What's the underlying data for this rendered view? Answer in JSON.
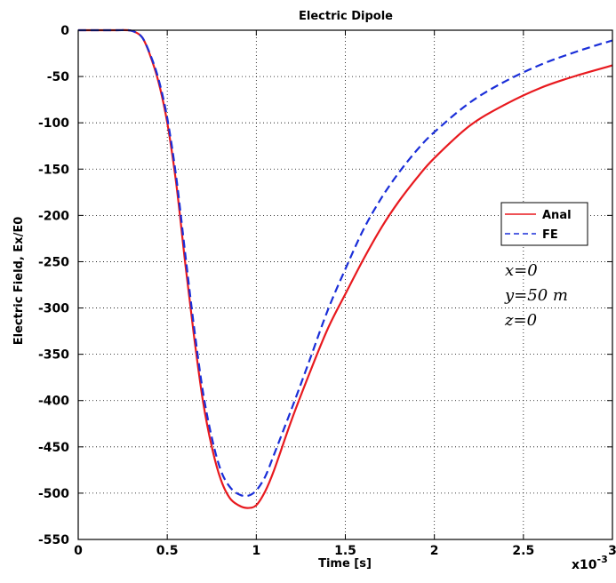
{
  "chart_data": {
    "type": "line",
    "title": "Electric Dipole",
    "xlabel": "Time [s]",
    "ylabel": "Electric Field, Ex/E0",
    "x_multiplier": "x10",
    "x_multiplier_exp": "-3",
    "xlim": [
      0,
      3
    ],
    "ylim": [
      -550,
      0
    ],
    "xticks": [
      0,
      0.5,
      1,
      1.5,
      2,
      2.5,
      3
    ],
    "xtick_labels": [
      "0",
      "0.5",
      "1",
      "1.5",
      "2",
      "2.5",
      "3"
    ],
    "yticks": [
      0,
      -50,
      -100,
      -150,
      -200,
      -250,
      -300,
      -350,
      -400,
      -450,
      -500,
      -550
    ],
    "ytick_labels": [
      "0",
      "-50",
      "-100",
      "-150",
      "-200",
      "-250",
      "-300",
      "-350",
      "-400",
      "-450",
      "-500",
      "-550"
    ],
    "grid": true,
    "legend_position": "right",
    "annotations": [
      "x=0",
      "y=50 m",
      "z=0"
    ],
    "series": [
      {
        "name": "Anal",
        "color": "#e8191e",
        "style": "solid",
        "x": [
          0,
          0.2,
          0.28,
          0.32,
          0.36,
          0.4,
          0.45,
          0.5,
          0.55,
          0.6,
          0.65,
          0.7,
          0.75,
          0.8,
          0.85,
          0.9,
          0.95,
          1.0,
          1.05,
          1.1,
          1.2,
          1.3,
          1.4,
          1.5,
          1.6,
          1.7,
          1.8,
          1.9,
          2.0,
          2.2,
          2.4,
          2.6,
          2.8,
          3.0
        ],
        "y": [
          0,
          0,
          0,
          -2,
          -8,
          -25,
          -55,
          -100,
          -165,
          -250,
          -330,
          -400,
          -450,
          -485,
          -505,
          -513,
          -516,
          -513,
          -498,
          -475,
          -420,
          -370,
          -323,
          -285,
          -248,
          -214,
          -185,
          -160,
          -138,
          -103,
          -80,
          -62,
          -49,
          -38
        ]
      },
      {
        "name": "FE",
        "color": "#1a2ed8",
        "style": "dashed",
        "x": [
          0,
          0.2,
          0.28,
          0.32,
          0.36,
          0.4,
          0.45,
          0.5,
          0.55,
          0.6,
          0.65,
          0.7,
          0.75,
          0.8,
          0.85,
          0.9,
          0.95,
          1.0,
          1.05,
          1.1,
          1.2,
          1.3,
          1.4,
          1.5,
          1.6,
          1.7,
          1.8,
          1.9,
          2.0,
          2.2,
          2.4,
          2.6,
          2.8,
          3.0
        ],
        "y": [
          0,
          0,
          0,
          -2,
          -8,
          -24,
          -52,
          -95,
          -158,
          -240,
          -320,
          -390,
          -440,
          -475,
          -493,
          -501,
          -503,
          -497,
          -482,
          -458,
          -408,
          -356,
          -303,
          -258,
          -216,
          -182,
          -154,
          -130,
          -110,
          -78,
          -55,
          -37,
          -23,
          -11
        ]
      }
    ]
  }
}
